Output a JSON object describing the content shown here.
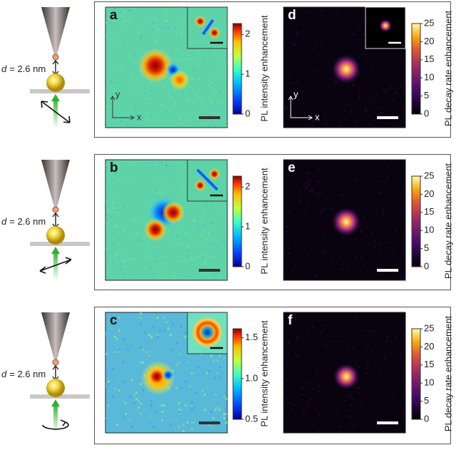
{
  "distance": {
    "variable": "d",
    "text": "= 2.6 nm"
  },
  "axes": {
    "x": "x",
    "y": "y"
  },
  "panels": [
    {
      "letter": "a",
      "colorbar_label": "PL intensity enhancement",
      "colorbar_ticks": [
        "2",
        "1",
        "0"
      ]
    },
    {
      "letter": "d",
      "colorbar_label": "PL decay rate enhancement",
      "colorbar_ticks": [
        "25",
        "20",
        "15",
        "10",
        "5",
        "0"
      ]
    },
    {
      "letter": "b",
      "colorbar_label": "PL intensity enhancement",
      "colorbar_ticks": [
        "2",
        "1",
        "0"
      ]
    },
    {
      "letter": "e",
      "colorbar_label": "PL decay rate enhancement",
      "colorbar_ticks": [
        "25",
        "20",
        "15",
        "10",
        "5",
        "0"
      ]
    },
    {
      "letter": "c",
      "colorbar_label": "PL intensity enhancement",
      "colorbar_ticks": [
        "1.5",
        "1.0",
        "0.5"
      ]
    },
    {
      "letter": "f",
      "colorbar_label": "PL decay rate enhancement",
      "colorbar_ticks": [
        "25",
        "20",
        "15",
        "10",
        "5",
        "0"
      ]
    }
  ]
}
